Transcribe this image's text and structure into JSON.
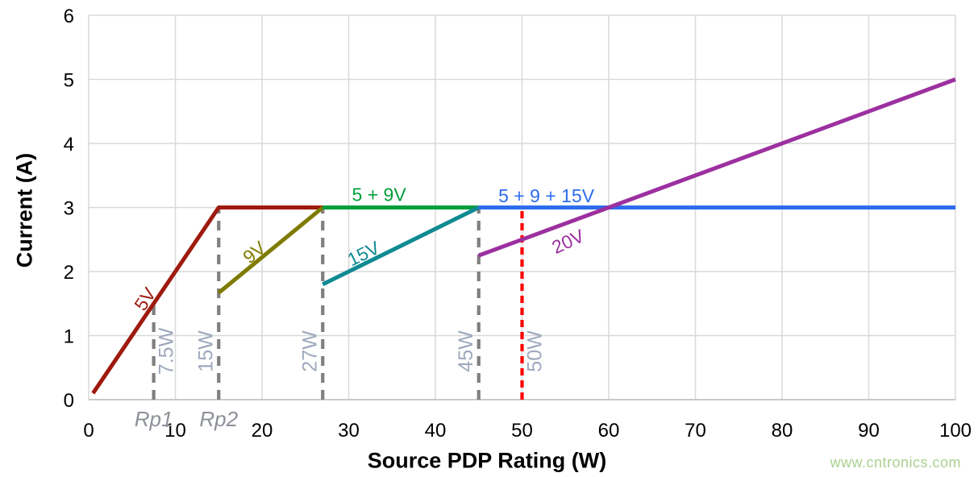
{
  "watermark": {
    "text": "www.cntronics.com",
    "color": "#A9D18E"
  },
  "chart_data": {
    "type": "line",
    "title": "",
    "xlabel": "Source PDP Rating (W)",
    "ylabel": "Current (A)",
    "xlim": [
      0,
      100
    ],
    "ylim": [
      0,
      6
    ],
    "xticks": [
      0,
      10,
      20,
      30,
      40,
      50,
      60,
      70,
      80,
      90,
      100
    ],
    "yticks": [
      0,
      1,
      2,
      3,
      4,
      5,
      6
    ],
    "grid": true,
    "grid_color": "#D9D9D9",
    "axis_line_color": "#BFBFBF",
    "legend": "inline-labels",
    "series": [
      {
        "name": "5V",
        "color": "#9E1B0E",
        "points": [
          [
            0.5,
            0.1
          ],
          [
            15,
            3
          ],
          [
            27,
            3
          ]
        ],
        "label": {
          "text": "5V",
          "x": 6.5,
          "y": 1.57,
          "rotation": -56
        }
      },
      {
        "name": "9V",
        "color": "#7F7B00",
        "points": [
          [
            15,
            1.667
          ],
          [
            27,
            3
          ]
        ],
        "label": {
          "text": "9V",
          "x": 19.1,
          "y": 2.3,
          "rotation": -39
        }
      },
      {
        "name": "5 + 9V",
        "color": "#009E3C",
        "points": [
          [
            27,
            3
          ],
          [
            45,
            3
          ]
        ],
        "label": {
          "text": "5 + 9V",
          "x": 33.5,
          "y": 3.2,
          "rotation": 0
        }
      },
      {
        "name": "15V",
        "color": "#108A92",
        "points": [
          [
            27,
            1.8
          ],
          [
            45,
            3
          ]
        ],
        "label": {
          "text": "15V",
          "x": 31.7,
          "y": 2.28,
          "rotation": -26
        }
      },
      {
        "name": "5 + 9 + 15V",
        "color": "#2E6CEC",
        "points": [
          [
            45,
            3
          ],
          [
            100,
            3
          ]
        ],
        "label": {
          "text": "5 + 9 + 15V",
          "x": 52.8,
          "y": 3.18,
          "rotation": 0
        }
      },
      {
        "name": "20V",
        "color": "#9C30A0",
        "points": [
          [
            45,
            2.25
          ],
          [
            100,
            5
          ]
        ],
        "label": {
          "text": "20V",
          "x": 55.3,
          "y": 2.47,
          "rotation": -25
        }
      }
    ],
    "reference_lines": [
      {
        "x": 7.5,
        "y_from": 0,
        "y_to": 1.5,
        "color": "#7F7F7F",
        "style": "dashed",
        "dash_style": "long",
        "label": "7.5W",
        "label_side": "right"
      },
      {
        "x": 15,
        "y_from": 0,
        "y_to": 3,
        "color": "#7F7F7F",
        "style": "dashed",
        "dash_style": "long",
        "label": "15W",
        "label_side": "left"
      },
      {
        "x": 27,
        "y_from": 0,
        "y_to": 3,
        "color": "#7F7F7F",
        "style": "dashed",
        "dash_style": "long",
        "label": "27W",
        "label_side": "left"
      },
      {
        "x": 45,
        "y_from": 0,
        "y_to": 3,
        "color": "#7F7F7F",
        "style": "dashed",
        "dash_style": "long",
        "label": "45W",
        "label_side": "left"
      },
      {
        "x": 50,
        "y_from": 0,
        "y_to": 3,
        "color": "#FF0000",
        "style": "dashed",
        "dash_style": "short",
        "label": "50W",
        "label_side": "right"
      }
    ],
    "reference_label_color": "#9EA8BC",
    "axis_annotations": [
      {
        "text": "Rp1",
        "x": 7.5,
        "color": "#8C9099"
      },
      {
        "text": "Rp2",
        "x": 15,
        "color": "#8C9099"
      }
    ]
  }
}
